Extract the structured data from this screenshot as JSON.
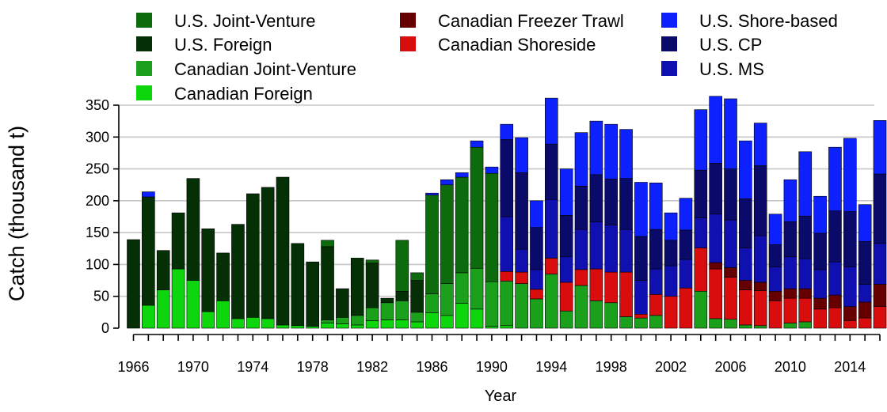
{
  "chart_data": {
    "type": "bar",
    "stacked": true,
    "title": "",
    "xlabel": "Year",
    "ylabel": "Catch (thousand t)",
    "ylim": [
      0,
      350
    ],
    "yticks": [
      0,
      50,
      100,
      150,
      200,
      250,
      300,
      350
    ],
    "xtick_labels": [
      "1966",
      "1970",
      "1974",
      "1978",
      "1982",
      "1986",
      "1990",
      "1994",
      "1998",
      "2002",
      "2006",
      "2010",
      "2014"
    ],
    "grid": "horizontal",
    "legend_position": "top",
    "categories": [
      1966,
      1967,
      1968,
      1969,
      1970,
      1971,
      1972,
      1973,
      1974,
      1975,
      1976,
      1977,
      1978,
      1979,
      1980,
      1981,
      1982,
      1983,
      1984,
      1985,
      1986,
      1987,
      1988,
      1989,
      1990,
      1991,
      1992,
      1993,
      1994,
      1995,
      1996,
      1997,
      1998,
      1999,
      2000,
      2001,
      2002,
      2003,
      2004,
      2005,
      2006,
      2007,
      2008,
      2009,
      2010,
      2011,
      2012,
      2013,
      2014,
      2015,
      2016
    ],
    "series": [
      {
        "name": "Canadian Foreign",
        "color": "#0dd60d",
        "values": [
          0,
          36,
          60,
          93,
          75,
          26,
          43,
          15,
          17,
          15,
          5,
          4,
          3,
          8,
          7,
          5,
          12,
          13,
          13,
          10,
          24,
          20,
          39,
          30,
          3,
          4,
          0,
          0,
          0,
          0,
          0,
          0,
          0,
          0,
          0,
          0,
          0,
          0,
          0,
          0,
          0,
          0,
          0,
          0,
          0,
          0,
          0,
          0,
          0,
          0,
          0
        ]
      },
      {
        "name": "Canadian Joint-Venture",
        "color": "#1aa01a",
        "values": [
          0,
          0,
          0,
          0,
          0,
          0,
          0,
          0,
          0,
          0,
          0,
          0,
          0,
          5,
          10,
          15,
          20,
          27,
          30,
          15,
          30,
          50,
          48,
          64,
          70,
          70,
          70,
          46,
          85,
          27,
          67,
          43,
          40,
          18,
          16,
          20,
          0,
          0,
          58,
          15,
          14,
          5,
          4,
          0,
          8,
          10,
          0,
          0,
          0,
          0,
          0
        ]
      },
      {
        "name": "Canadian Shoreside",
        "color": "#d90d0d",
        "values": [
          0,
          0,
          0,
          0,
          0,
          0,
          0,
          0,
          0,
          0,
          0,
          0,
          0,
          0,
          0,
          0,
          0,
          0,
          0,
          0,
          0,
          0,
          0,
          0,
          0,
          15,
          18,
          15,
          25,
          45,
          25,
          50,
          48,
          70,
          6,
          33,
          50,
          63,
          68,
          78,
          66,
          55,
          55,
          43,
          39,
          37,
          30,
          32,
          12,
          16,
          34
        ]
      },
      {
        "name": "Canadian Freezer Trawl",
        "color": "#660000",
        "values": [
          0,
          0,
          0,
          0,
          0,
          0,
          0,
          0,
          0,
          0,
          0,
          0,
          0,
          0,
          0,
          0,
          0,
          0,
          0,
          0,
          0,
          0,
          0,
          0,
          0,
          0,
          0,
          0,
          0,
          0,
          0,
          0,
          0,
          0,
          0,
          0,
          0,
          0,
          0,
          10,
          15,
          15,
          13,
          15,
          15,
          15,
          17,
          20,
          22,
          25,
          35
        ]
      },
      {
        "name": "U.S. Foreign",
        "color": "#053005",
        "values": [
          139,
          170,
          62,
          88,
          160,
          130,
          75,
          148,
          194,
          206,
          232,
          129,
          101,
          115,
          45,
          90,
          70,
          7,
          15,
          50,
          0,
          0,
          0,
          0,
          0,
          0,
          0,
          0,
          0,
          0,
          0,
          0,
          0,
          0,
          0,
          0,
          0,
          0,
          0,
          0,
          0,
          0,
          0,
          0,
          0,
          0,
          0,
          0,
          0,
          0,
          0
        ]
      },
      {
        "name": "U.S. Joint-Venture",
        "color": "#0d6b0d",
        "values": [
          0,
          0,
          0,
          0,
          0,
          0,
          0,
          0,
          0,
          0,
          0,
          0,
          0,
          10,
          0,
          0,
          5,
          0,
          80,
          12,
          155,
          155,
          150,
          190,
          170,
          0,
          0,
          0,
          0,
          0,
          0,
          0,
          0,
          0,
          0,
          0,
          0,
          0,
          0,
          0,
          0,
          0,
          0,
          0,
          0,
          0,
          0,
          0,
          0,
          0,
          0
        ]
      },
      {
        "name": "U.S. MS",
        "color": "#1010b0",
        "values": [
          0,
          0,
          0,
          0,
          0,
          0,
          0,
          0,
          0,
          0,
          0,
          0,
          0,
          0,
          0,
          0,
          0,
          0,
          0,
          0,
          0,
          0,
          0,
          0,
          0,
          86,
          36,
          31,
          92,
          40,
          63,
          74,
          74,
          67,
          53,
          40,
          48,
          45,
          47,
          76,
          75,
          51,
          73,
          38,
          50,
          47,
          45,
          52,
          62,
          28,
          64
        ]
      },
      {
        "name": "U.S. CP",
        "color": "#0a0a6b",
        "values": [
          0,
          0,
          0,
          0,
          0,
          0,
          0,
          0,
          0,
          0,
          0,
          0,
          0,
          0,
          0,
          0,
          0,
          0,
          0,
          0,
          0,
          0,
          0,
          0,
          0,
          121,
          120,
          66,
          87,
          65,
          68,
          74,
          72,
          80,
          69,
          62,
          40,
          46,
          75,
          80,
          80,
          77,
          110,
          35,
          55,
          67,
          57,
          80,
          87,
          67,
          109
        ]
      },
      {
        "name": "U.S. Shore-based",
        "color": "#0d21ff",
        "values": [
          0,
          8,
          0,
          0,
          0,
          0,
          0,
          0,
          0,
          0,
          0,
          0,
          0,
          0,
          0,
          0,
          0,
          0,
          0,
          0,
          3,
          8,
          7,
          10,
          10,
          24,
          55,
          42,
          72,
          73,
          84,
          84,
          86,
          77,
          85,
          73,
          43,
          50,
          95,
          105,
          110,
          91,
          67,
          48,
          66,
          101,
          58,
          100,
          115,
          58,
          84
        ]
      }
    ]
  }
}
